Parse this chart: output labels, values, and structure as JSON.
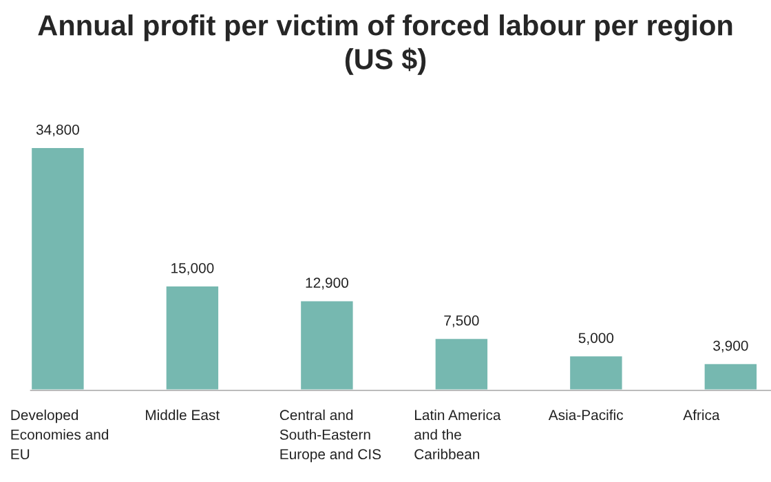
{
  "chart_data": {
    "type": "bar",
    "title": "Annual profit per victim of forced labour per region\n(US $)",
    "categories": [
      "Developed\nEconomies and\nEU",
      "Middle East",
      "Central and\nSouth-Eastern\nEurope and CIS",
      "Latin America\nand the\nCaribbean",
      "Asia-Pacific",
      "Africa"
    ],
    "values": [
      34800,
      15000,
      12900,
      7500,
      5000,
      3900
    ],
    "value_labels": [
      "34,800",
      "15,000",
      "12,900",
      "7,500",
      "5,000",
      "3,900"
    ],
    "color": "#76b8b0",
    "grid": false,
    "legend": false
  }
}
